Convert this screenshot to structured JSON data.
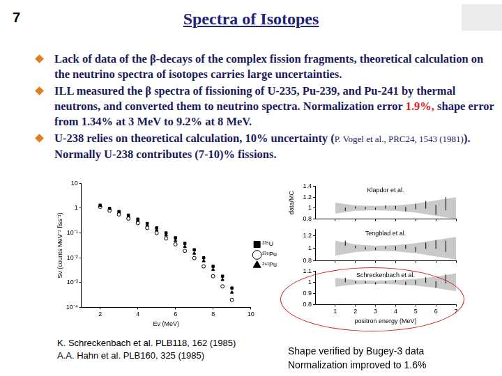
{
  "page": {
    "number": "7",
    "title": "Spectra of Isotopes",
    "bullets": [
      [
        {
          "text": "Lack of data of the β-decays of the complex fission fragments, theoretical calculation on the neutrino spectra of isotopes carries large uncertainties."
        }
      ],
      [
        {
          "text": "ILL measured the β spectra of fissioning of U-235, Pu-239, and Pu-241 by thermal neutrons, and converted them to neutrino spectra. Normalization error "
        },
        {
          "text": "1.9%,",
          "color": "#e02020"
        },
        {
          "text": " shape error from 1.34% at 3 MeV to 9.2% at 8 MeV."
        }
      ],
      [
        {
          "text": "U-238 relies on theoretical calculation, 10% uncertainty ("
        },
        {
          "text": "P. Vogel et al., PRC24, 1543 (1981)",
          "small": true
        },
        {
          "text": "). Normally U-238 contributes (7-10)% fissions."
        }
      ]
    ],
    "citations": [
      "K. Schreckenbach et al. PLB118, 162 (1985)",
      "A.A. Hahn et al. PLB160, 325 (1985)"
    ],
    "caption": [
      "Shape verified by Bugey-3 data",
      "Normalization improved to 1.6%"
    ]
  },
  "chart_data": [
    {
      "type": "scatter",
      "log": "y",
      "grid": false,
      "legend": "right",
      "xlabel": "Eν (MeV)",
      "ylabel": "Sν (counts MeV⁻¹ fiss⁻¹)",
      "xlim": [
        1,
        10
      ],
      "xticks": [
        2,
        4,
        6,
        8,
        10
      ],
      "ylim": [
        0.0001,
        10
      ],
      "yticks": [
        {
          "value": 0.0001,
          "label": "10⁻⁴"
        },
        {
          "value": 0.001,
          "label": "10⁻³"
        },
        {
          "value": 0.01,
          "label": "10⁻²"
        },
        {
          "value": 0.1,
          "label": "10⁻¹"
        },
        1,
        10
      ],
      "x": [
        2,
        2.5,
        3,
        3.5,
        4,
        4.5,
        5,
        5.5,
        6,
        6.5,
        7,
        7.5,
        8,
        8.5,
        9
      ],
      "series": [
        {
          "name": "²³⁵U",
          "color": "#000000",
          "marker": "square",
          "values": [
            1.31,
            0.98,
            0.73,
            0.52,
            0.36,
            0.24,
            0.16,
            0.1,
            0.064,
            0.038,
            0.021,
            0.01,
            0.0045,
            0.0018,
            0.0006
          ]
        },
        {
          "name": "²³⁹Pu",
          "color": "#000000",
          "marker": "circle",
          "values": [
            1.13,
            0.8,
            0.56,
            0.38,
            0.25,
            0.16,
            0.1,
            0.06,
            0.035,
            0.019,
            0.0097,
            0.0045,
            0.0018,
            0.0007,
            0.0002
          ]
        },
        {
          "name": "²⁴¹Pu",
          "color": "#000000",
          "marker": "triangle",
          "values": [
            1.28,
            0.94,
            0.67,
            0.46,
            0.31,
            0.2,
            0.13,
            0.081,
            0.049,
            0.028,
            0.015,
            0.0074,
            0.0033,
            0.0013,
            0.0004
          ]
        }
      ]
    },
    {
      "type": "scatter",
      "grid": false,
      "tick_labels": "y",
      "annotation": "Klapdor et al.",
      "ylabel": "data/MC",
      "xlim": [
        0,
        7
      ],
      "xticks": [
        1,
        2,
        3,
        4,
        5,
        6,
        7
      ],
      "ylim": [
        0.8,
        1.4
      ],
      "yticks": [
        0.8,
        1,
        1.2,
        1.4
      ],
      "band_x": [
        1,
        2,
        3,
        4,
        5,
        6,
        7
      ],
      "band_low": [
        0.9,
        0.95,
        0.96,
        0.95,
        0.92,
        0.86,
        0.8
      ],
      "band_high": [
        1.1,
        1.05,
        1.04,
        1.05,
        1.08,
        1.14,
        1.2
      ],
      "x": [
        1.5,
        2,
        2.5,
        3,
        3.5,
        4,
        4.5,
        5,
        5.5,
        6,
        6.5
      ],
      "series": [
        {
          "color": "#000000",
          "marker": "dash",
          "values": [
            0.98,
            1.01,
            1.0,
            0.99,
            1.02,
            1.01,
            0.98,
            1.03,
            1.06,
            0.97,
            1.08
          ],
          "errors": [
            0.03,
            0.02,
            0.02,
            0.02,
            0.03,
            0.03,
            0.04,
            0.05,
            0.07,
            0.09,
            0.12
          ]
        }
      ]
    },
    {
      "type": "scatter",
      "grid": false,
      "tick_labels": "y",
      "annotation": "Tengblad et al.",
      "xlim": [
        0,
        7
      ],
      "xticks": [
        1,
        2,
        3,
        4,
        5,
        6,
        7
      ],
      "ylim": [
        0.8,
        1.3
      ],
      "yticks": [
        0.8,
        1,
        1.2
      ],
      "band_x": [
        1,
        2,
        3,
        4,
        5,
        6,
        7
      ],
      "band_low": [
        0.88,
        0.94,
        0.96,
        0.95,
        0.92,
        0.87,
        0.82
      ],
      "band_high": [
        1.12,
        1.06,
        1.04,
        1.05,
        1.08,
        1.13,
        1.18
      ],
      "x": [
        1.5,
        2,
        2.5,
        3,
        3.5,
        4,
        4.5,
        5,
        5.5,
        6,
        6.5
      ],
      "series": [
        {
          "color": "#000000",
          "marker": "dash",
          "values": [
            1.08,
            1.02,
            1.0,
            0.99,
            1.01,
            1.0,
            1.02,
            0.98,
            1.04,
            1.06,
            1.03
          ],
          "errors": [
            0.04,
            0.02,
            0.02,
            0.02,
            0.02,
            0.03,
            0.03,
            0.04,
            0.05,
            0.07,
            0.09
          ]
        }
      ]
    },
    {
      "type": "scatter",
      "grid": false,
      "annotation": "Schreckenbach et al.",
      "xlabel": "positron energy (MeV)",
      "xlim": [
        0,
        7
      ],
      "xticks": [
        1,
        2,
        3,
        4,
        5,
        6,
        7
      ],
      "ylim": [
        0.8,
        1.1
      ],
      "yticks": [
        0.8,
        0.9,
        1,
        1.1
      ],
      "band_x": [
        1,
        2,
        3,
        4,
        5,
        6,
        7
      ],
      "band_low": [
        0.96,
        0.98,
        0.985,
        0.98,
        0.97,
        0.95,
        0.92
      ],
      "band_high": [
        1.04,
        1.02,
        1.015,
        1.02,
        1.03,
        1.05,
        1.08
      ],
      "x": [
        1.5,
        2,
        2.5,
        3,
        3.5,
        4,
        4.5,
        5,
        5.5,
        6,
        6.5
      ],
      "series": [
        {
          "color": "#000000",
          "marker": "dash",
          "values": [
            1.02,
            1.0,
            1.0,
            0.99,
            1.0,
            1.01,
            0.99,
            1.0,
            1.02,
            0.98,
            1.03
          ],
          "errors": [
            0.02,
            0.01,
            0.01,
            0.01,
            0.01,
            0.01,
            0.015,
            0.02,
            0.025,
            0.03,
            0.04
          ]
        }
      ]
    }
  ]
}
